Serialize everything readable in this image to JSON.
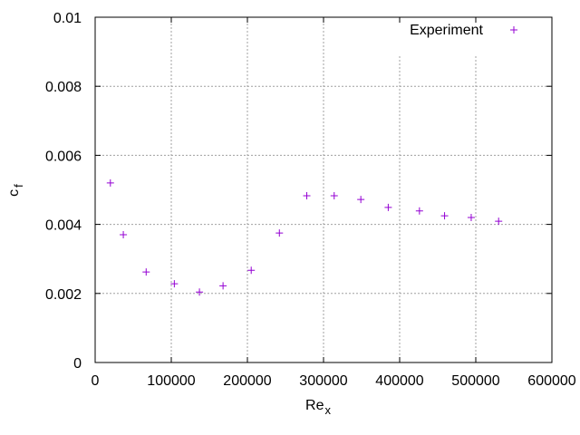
{
  "chart_data": {
    "type": "scatter",
    "title": "",
    "xlabel": "Re",
    "xlabel_subscript": "x",
    "ylabel": "c",
    "ylabel_subscript": "f",
    "xlim": [
      0,
      600000
    ],
    "ylim": [
      0,
      0.01
    ],
    "xticks": [
      0,
      100000,
      200000,
      300000,
      400000,
      500000,
      600000
    ],
    "xtick_labels": [
      "0",
      "100000",
      "200000",
      "300000",
      "400000",
      "500000",
      "600000"
    ],
    "yticks": [
      0,
      0.002,
      0.004,
      0.006,
      0.008,
      0.01
    ],
    "ytick_labels": [
      "0",
      "0.002",
      "0.004",
      "0.006",
      "0.008",
      "0.01"
    ],
    "grid": true,
    "legend_position": "top-right",
    "marker": "+",
    "series": [
      {
        "name": "Experiment",
        "color": "#9400d3",
        "x": [
          20000,
          37000,
          67000,
          104000,
          137000,
          168000,
          205000,
          242000,
          278000,
          314000,
          349000,
          385000,
          426000,
          459000,
          494000,
          530000
        ],
        "y": [
          0.0052,
          0.0037,
          0.00262,
          0.00228,
          0.00204,
          0.00222,
          0.00267,
          0.00375,
          0.00483,
          0.00483,
          0.00472,
          0.00449,
          0.00439,
          0.00425,
          0.0042,
          0.00409
        ]
      }
    ]
  }
}
